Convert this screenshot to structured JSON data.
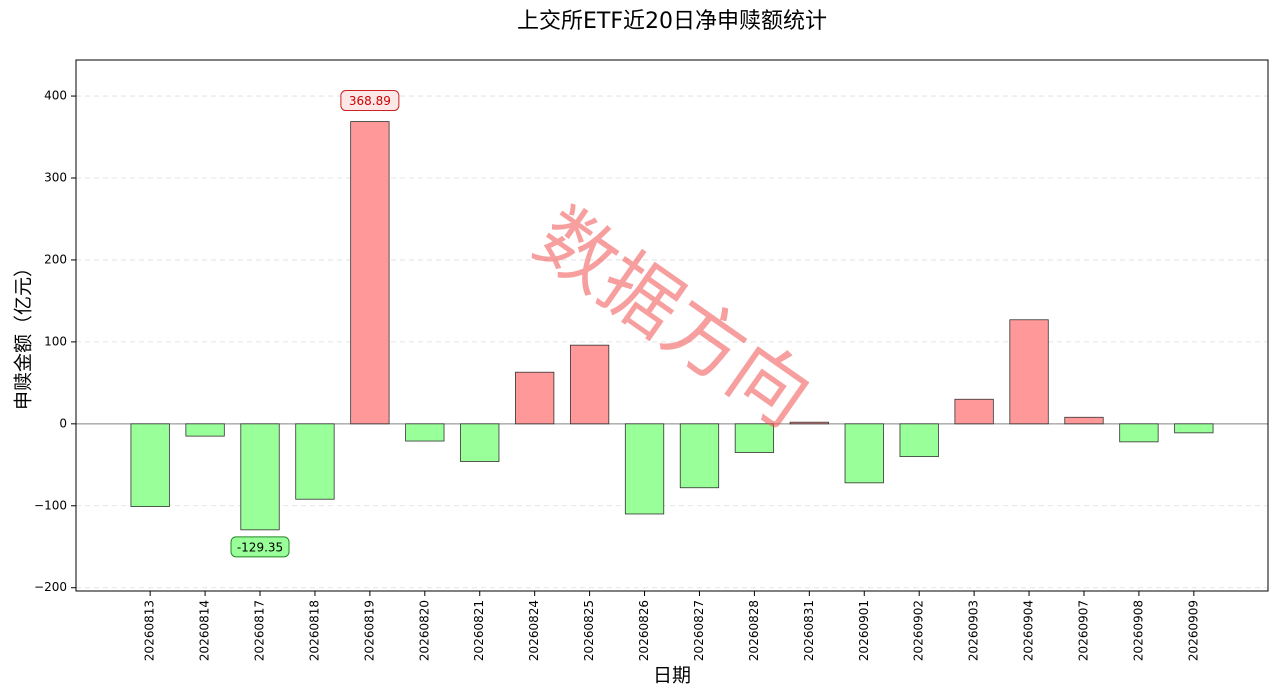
{
  "chart_data": {
    "type": "bar",
    "title": "上交所ETF近20日净申赎额统计",
    "x_label": "日期",
    "y_label": "申赎金额（亿元）",
    "watermark": "数据方向",
    "categories": [
      "20260813",
      "20260814",
      "20260817",
      "20260818",
      "20260819",
      "20260820",
      "20260821",
      "20260824",
      "20260825",
      "20260826",
      "20260827",
      "20260828",
      "20260831",
      "20260901",
      "20260902",
      "20260903",
      "20260904",
      "20260907",
      "20260908",
      "20260909"
    ],
    "values": [
      -101,
      -15,
      -129.35,
      -92,
      368.89,
      -21,
      -46,
      63,
      96,
      -110,
      -78,
      -35,
      2,
      -72,
      -40,
      30,
      127,
      8,
      -22,
      -11
    ],
    "positive_color": "#ff9999",
    "negative_color": "#99ff99",
    "annotations": [
      {
        "category": "20260819",
        "value": 368.89
      },
      {
        "category": "20260817",
        "value": -129.35
      }
    ],
    "ylim": [
      -204,
      444
    ],
    "yticks": [
      {
        "value": -200,
        "label": "−200"
      },
      {
        "value": -100,
        "label": "−100"
      },
      0,
      100,
      200,
      300,
      400
    ],
    "grid": true
  }
}
